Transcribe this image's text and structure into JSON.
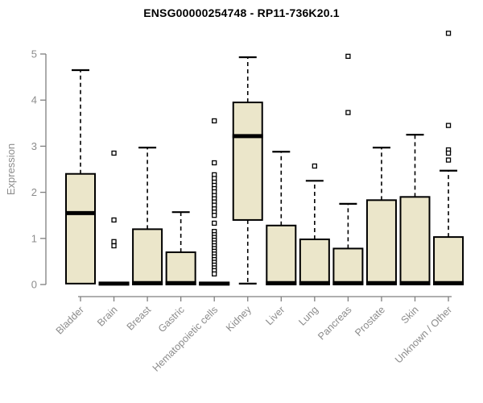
{
  "header": {
    "title": "ENSG00000254748 - RP11-736K20.1"
  },
  "chart_data": {
    "type": "boxplot",
    "title": "ENSG00000254748 - RP11-736K20.1",
    "ylabel": "Expression",
    "xlabel": "",
    "ylim": [
      0,
      5.5
    ],
    "yticks": [
      0,
      1,
      2,
      3,
      4,
      5
    ],
    "grid": false,
    "legend": "none",
    "categories": [
      "Bladder",
      "Brain",
      "Breast",
      "Gastric",
      "Hematopoietic cells",
      "Kidney",
      "Liver",
      "Lung",
      "Pancreas",
      "Prostate",
      "Skin",
      "Unknown / Other"
    ],
    "series": [
      {
        "name": "Bladder",
        "low": 0.02,
        "q1": 0.02,
        "median": 1.55,
        "q3": 2.4,
        "high": 4.65,
        "outliers": []
      },
      {
        "name": "Brain",
        "low": 0.0,
        "q1": 0.0,
        "median": 0.02,
        "q3": 0.04,
        "high": 0.04,
        "outliers": [
          2.85,
          1.4,
          0.93,
          0.84
        ]
      },
      {
        "name": "Breast",
        "low": 0.0,
        "q1": 0.0,
        "median": 0.03,
        "q3": 1.2,
        "high": 2.97,
        "outliers": []
      },
      {
        "name": "Gastric",
        "low": 0.0,
        "q1": 0.0,
        "median": 0.03,
        "q3": 0.7,
        "high": 1.57,
        "outliers": []
      },
      {
        "name": "Hematopoietic cells",
        "low": 0.0,
        "q1": 0.0,
        "median": 0.02,
        "q3": 0.04,
        "high": 0.05,
        "outliers": [
          3.55,
          2.64,
          2.38,
          2.3,
          2.22,
          2.15,
          2.08,
          2.01,
          1.93,
          1.86,
          1.79,
          1.72,
          1.64,
          1.57,
          1.5,
          1.33,
          1.15,
          1.08,
          1.02,
          0.96,
          0.9,
          0.84,
          0.78,
          0.72,
          0.66,
          0.6,
          0.54,
          0.48,
          0.42,
          0.36,
          0.3,
          0.23
        ]
      },
      {
        "name": "Kidney",
        "low": 0.02,
        "q1": 1.4,
        "median": 3.22,
        "q3": 3.95,
        "high": 4.93,
        "outliers": []
      },
      {
        "name": "Liver",
        "low": 0.0,
        "q1": 0.0,
        "median": 0.03,
        "q3": 1.28,
        "high": 2.88,
        "outliers": []
      },
      {
        "name": "Lung",
        "low": 0.0,
        "q1": 0.0,
        "median": 0.03,
        "q3": 0.98,
        "high": 2.25,
        "outliers": [
          2.57
        ]
      },
      {
        "name": "Pancreas",
        "low": 0.0,
        "q1": 0.0,
        "median": 0.03,
        "q3": 0.78,
        "high": 1.75,
        "outliers": [
          4.95,
          3.73
        ]
      },
      {
        "name": "Prostate",
        "low": 0.0,
        "q1": 0.0,
        "median": 0.03,
        "q3": 1.83,
        "high": 2.97,
        "outliers": []
      },
      {
        "name": "Skin",
        "low": 0.0,
        "q1": 0.0,
        "median": 0.03,
        "q3": 1.9,
        "high": 3.25,
        "outliers": []
      },
      {
        "name": "Unknown / Other",
        "low": 0.0,
        "q1": 0.0,
        "median": 0.03,
        "q3": 1.03,
        "high": 2.47,
        "outliers": [
          5.45,
          3.45,
          2.92,
          2.85,
          2.7
        ]
      }
    ],
    "colors": {
      "box_fill": "#ebe6ca",
      "box_border": "#000000",
      "median": "#000000",
      "whisker": "#000000",
      "outlier_fill": "#ffffff",
      "axis": "#7f7f7f",
      "tick_label": "#8c8c8c",
      "title": "#000000",
      "background": "#ffffff"
    }
  }
}
